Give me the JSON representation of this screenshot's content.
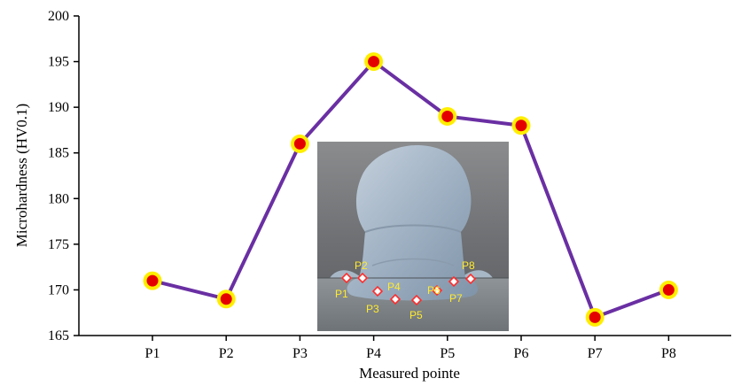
{
  "chart_data": {
    "type": "line",
    "categories": [
      "P1",
      "P2",
      "P3",
      "P4",
      "P5",
      "P6",
      "P7",
      "P8"
    ],
    "series": [
      {
        "values": [
          171,
          169,
          186,
          195,
          189,
          188,
          167,
          170
        ]
      }
    ],
    "xlabel": "Measured pointe",
    "ylabel": "Microhardness (HV0.1)",
    "ylim": [
      165,
      200
    ],
    "yticks": [
      165,
      170,
      175,
      180,
      185,
      190,
      195,
      200
    ],
    "grid": false,
    "legend": "none",
    "colors": {
      "line": "#6a2fa3",
      "marker_fill": "#e50000",
      "marker_ring": "#ffee00",
      "inset_label": "#ffea2e",
      "inset_marker": "#ff2b2b"
    },
    "inset": {
      "description_labels": [
        "P1",
        "P2",
        "P3",
        "P4",
        "P5",
        "P6",
        "P7",
        "P8"
      ]
    }
  }
}
